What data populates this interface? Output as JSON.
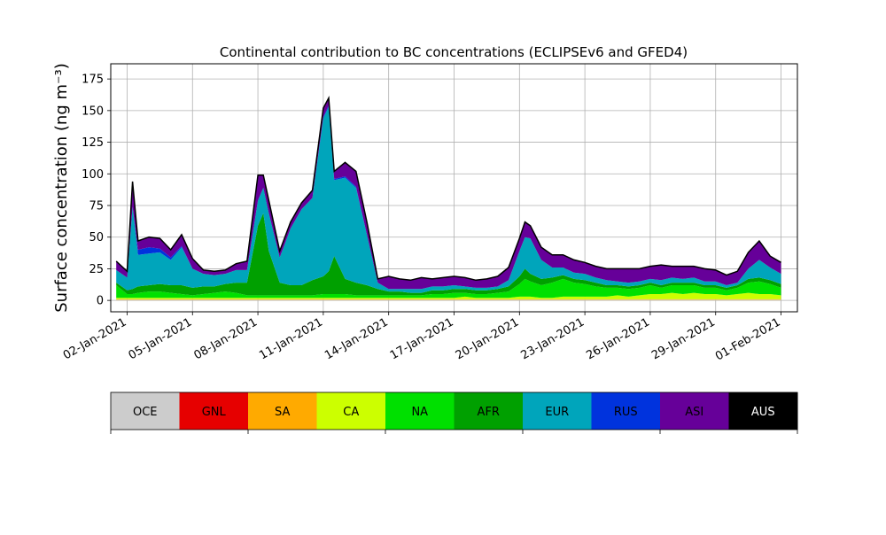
{
  "chart_data": {
    "type": "area",
    "stacked": true,
    "title": "Continental contribution to BC concentrations (ECLIPSEv6 and GFED4)",
    "ylabel": "Surface concentration (ng m⁻³)",
    "ylim": [
      -9,
      187
    ],
    "y_ticks": [
      0,
      25,
      50,
      75,
      100,
      125,
      150,
      175
    ],
    "y_tick_labels": [
      "0",
      "25",
      "50",
      "75",
      "100",
      "125",
      "150",
      "175"
    ],
    "xlim": [
      "2021-01-01T06:00",
      "2021-02-01T18:00"
    ],
    "x_ticks": [
      "2021-01-02",
      "2021-01-05",
      "2021-01-08",
      "2021-01-11",
      "2021-01-14",
      "2021-01-17",
      "2021-01-20",
      "2021-01-23",
      "2021-01-26",
      "2021-01-29",
      "2021-02-01"
    ],
    "x_tick_labels": [
      "02-Jan-2021",
      "05-Jan-2021",
      "08-Jan-2021",
      "11-Jan-2021",
      "14-Jan-2021",
      "17-Jan-2021",
      "20-Jan-2021",
      "23-Jan-2021",
      "26-Jan-2021",
      "29-Jan-2021",
      "01-Feb-2021"
    ],
    "grid": true,
    "x": [
      "2021-01-01T12:00",
      "2021-01-02T00:00",
      "2021-01-02T06:00",
      "2021-01-02T12:00",
      "2021-01-03T00:00",
      "2021-01-03T12:00",
      "2021-01-04T00:00",
      "2021-01-04T12:00",
      "2021-01-05T00:00",
      "2021-01-05T12:00",
      "2021-01-06T00:00",
      "2021-01-06T12:00",
      "2021-01-07T00:00",
      "2021-01-07T12:00",
      "2021-01-08T00:00",
      "2021-01-08T06:00",
      "2021-01-08T12:00",
      "2021-01-09T00:00",
      "2021-01-09T12:00",
      "2021-01-10T00:00",
      "2021-01-10T12:00",
      "2021-01-11T00:00",
      "2021-01-11T06:00",
      "2021-01-11T12:00",
      "2021-01-12T00:00",
      "2021-01-12T12:00",
      "2021-01-13T00:00",
      "2021-01-13T12:00",
      "2021-01-14T00:00",
      "2021-01-14T12:00",
      "2021-01-15T00:00",
      "2021-01-15T12:00",
      "2021-01-16T00:00",
      "2021-01-16T12:00",
      "2021-01-17T00:00",
      "2021-01-17T12:00",
      "2021-01-18T00:00",
      "2021-01-18T12:00",
      "2021-01-19T00:00",
      "2021-01-19T12:00",
      "2021-01-20T00:00",
      "2021-01-20T06:00",
      "2021-01-20T12:00",
      "2021-01-21T00:00",
      "2021-01-21T12:00",
      "2021-01-22T00:00",
      "2021-01-22T12:00",
      "2021-01-23T00:00",
      "2021-01-23T12:00",
      "2021-01-24T00:00",
      "2021-01-24T12:00",
      "2021-01-25T00:00",
      "2021-01-25T12:00",
      "2021-01-26T00:00",
      "2021-01-26T12:00",
      "2021-01-27T00:00",
      "2021-01-27T12:00",
      "2021-01-28T00:00",
      "2021-01-28T12:00",
      "2021-01-29T00:00",
      "2021-01-29T12:00",
      "2021-01-30T00:00",
      "2021-01-30T12:00",
      "2021-01-31T00:00",
      "2021-01-31T12:00",
      "2021-02-01T00:00"
    ],
    "series": [
      {
        "name": "OCE",
        "color": "#cccccc",
        "values": [
          0.5,
          0.5,
          0.5,
          0.5,
          0.5,
          0.5,
          0.5,
          0.5,
          0.5,
          0.5,
          0.5,
          0.5,
          0.5,
          0.5,
          0.5,
          0.5,
          0.5,
          0.5,
          0.5,
          0.5,
          0.5,
          0.5,
          0.5,
          0.5,
          0.5,
          0.5,
          0.5,
          0.5,
          0.5,
          0.5,
          0.5,
          0.5,
          0.5,
          0.5,
          0.5,
          0.5,
          0.5,
          0.5,
          0.5,
          0.5,
          0.5,
          0.5,
          0.5,
          0.5,
          0.5,
          0.5,
          0.5,
          0.5,
          0.5,
          0.5,
          0.5,
          0.5,
          0.5,
          0.5,
          0.5,
          0.5,
          0.5,
          0.5,
          0.5,
          0.5,
          0.5,
          0.5,
          0.5,
          0.5,
          0.5,
          0.5
        ]
      },
      {
        "name": "GNL",
        "color": "#e60000",
        "values": [
          0,
          0,
          0,
          0,
          0,
          0,
          0,
          0,
          0,
          0,
          0,
          0,
          0,
          0,
          0,
          0,
          0,
          0,
          0,
          0,
          0,
          0,
          0,
          0,
          0,
          0,
          0,
          0,
          0,
          0,
          0,
          0,
          0,
          0,
          0,
          0,
          0,
          0,
          0,
          0,
          0,
          0,
          0,
          0,
          0,
          0,
          0,
          0,
          0,
          0,
          0,
          0,
          0,
          0,
          0,
          0,
          0,
          0,
          0,
          0,
          0,
          0,
          0,
          0,
          0,
          0
        ]
      },
      {
        "name": "SA",
        "color": "#ffaa00",
        "values": [
          0.5,
          0.5,
          0.5,
          0.5,
          0.5,
          0.5,
          0.5,
          0.5,
          0.5,
          0.5,
          0.5,
          0.5,
          0.5,
          0.5,
          0.5,
          0.5,
          0.5,
          0.5,
          0.5,
          0.5,
          0.5,
          0.5,
          0.5,
          0.5,
          0.5,
          0.5,
          0.5,
          0.5,
          0.5,
          0.5,
          0.5,
          0.5,
          0.5,
          0.5,
          0.5,
          0.5,
          0.5,
          0.5,
          0.5,
          0.5,
          0.5,
          0.5,
          0.5,
          0.5,
          0.5,
          0.5,
          0.5,
          0.5,
          0.5,
          0.5,
          0.5,
          0.5,
          0.5,
          0.5,
          0.5,
          0.5,
          0.5,
          0.5,
          0.5,
          0.5,
          0.5,
          0.5,
          0.5,
          0.5,
          0.5,
          0.5
        ]
      },
      {
        "name": "CA",
        "color": "#ccff00",
        "values": [
          1,
          1,
          1,
          1,
          1,
          1,
          1,
          1,
          1,
          1,
          1,
          1,
          1,
          1,
          1,
          1,
          1,
          1,
          1,
          1,
          1,
          1,
          1,
          1,
          1,
          1,
          1,
          1,
          1,
          1,
          1,
          1,
          1,
          1,
          1,
          2,
          1,
          1,
          1,
          1,
          2,
          2,
          2,
          1,
          1,
          2,
          2,
          2,
          2,
          2,
          3,
          2,
          3,
          4,
          4,
          5,
          4,
          5,
          4,
          4,
          3,
          4,
          5,
          4,
          4,
          3
        ]
      },
      {
        "name": "NA",
        "color": "#00e000",
        "values": [
          10,
          3,
          3,
          4,
          5,
          5,
          4,
          3,
          2,
          3,
          4,
          5,
          4,
          2,
          2,
          2,
          2,
          2,
          2,
          2,
          2,
          3,
          3,
          3,
          3,
          2,
          2,
          2,
          2,
          2,
          2,
          2,
          3,
          3,
          4,
          3,
          3,
          3,
          4,
          5,
          10,
          14,
          12,
          10,
          12,
          14,
          11,
          10,
          8,
          7,
          6,
          6,
          6,
          7,
          5,
          6,
          7,
          6,
          5,
          5,
          4,
          5,
          8,
          10,
          8,
          6
        ]
      },
      {
        "name": "AFR",
        "color": "#00a000",
        "values": [
          2,
          3,
          4,
          5,
          5,
          6,
          6,
          7,
          6,
          6,
          5,
          6,
          8,
          10,
          55,
          65,
          35,
          10,
          8,
          8,
          12,
          14,
          18,
          30,
          12,
          10,
          8,
          5,
          3,
          3,
          2,
          2,
          3,
          3,
          3,
          3,
          3,
          3,
          3,
          4,
          6,
          8,
          6,
          5,
          4,
          3,
          3,
          3,
          3,
          2,
          2,
          2,
          2,
          2,
          2,
          2,
          2,
          2,
          2,
          2,
          2,
          2,
          3,
          3,
          3,
          3
        ]
      },
      {
        "name": "EUR",
        "color": "#00a5bb",
        "values": [
          10,
          10,
          65,
          25,
          25,
          25,
          20,
          30,
          15,
          10,
          9,
          8,
          10,
          10,
          20,
          20,
          30,
          20,
          45,
          60,
          65,
          125,
          130,
          60,
          80,
          75,
          40,
          5,
          2,
          2,
          3,
          3,
          3,
          3,
          3,
          2,
          2,
          2,
          2,
          5,
          20,
          25,
          28,
          15,
          8,
          6,
          5,
          5,
          4,
          4,
          3,
          3,
          3,
          3,
          4,
          4,
          3,
          4,
          3,
          3,
          2,
          2,
          8,
          14,
          10,
          8
        ]
      },
      {
        "name": "RUS",
        "color": "#0033dd",
        "values": [
          0,
          0,
          0,
          4,
          5,
          3,
          2,
          1,
          0,
          0,
          0,
          0,
          0,
          0,
          0,
          0,
          0,
          0,
          0,
          0,
          0,
          1,
          1,
          1,
          1,
          1,
          0,
          0,
          0,
          0,
          0,
          0,
          0,
          0,
          0,
          0,
          0,
          0,
          0,
          0,
          0,
          0,
          0,
          0,
          0,
          0,
          0,
          0,
          0,
          0,
          0,
          0,
          0,
          0,
          0,
          0,
          0,
          0,
          0,
          0,
          0,
          0,
          0,
          0,
          0,
          0
        ]
      },
      {
        "name": "ASI",
        "color": "#660099",
        "values": [
          7,
          5,
          20,
          7,
          8,
          8,
          6,
          9,
          8,
          3,
          3,
          3,
          5,
          7,
          20,
          10,
          10,
          5,
          5,
          5,
          6,
          7,
          6,
          6,
          11,
          12,
          10,
          3,
          10,
          8,
          7,
          9,
          6,
          7,
          7,
          7,
          6,
          7,
          8,
          10,
          10,
          12,
          10,
          10,
          10,
          10,
          10,
          9,
          9,
          9,
          10,
          11,
          10,
          10,
          12,
          9,
          10,
          9,
          10,
          9,
          8,
          9,
          13,
          15,
          9,
          9
        ]
      },
      {
        "name": "AUS",
        "color": "#000000",
        "values": [
          0,
          0,
          0,
          0,
          0,
          0,
          0,
          0,
          0,
          0,
          0,
          0,
          0,
          0,
          0,
          0,
          0,
          0,
          0,
          0,
          0,
          0,
          0,
          0,
          0,
          0,
          0,
          0,
          0,
          0,
          0,
          0,
          0,
          0,
          0,
          0,
          0,
          0,
          0,
          0,
          0,
          0,
          0,
          0,
          0,
          0,
          0,
          0,
          0,
          0,
          0,
          0,
          0,
          0,
          0,
          0,
          0,
          0,
          0,
          0,
          0,
          0,
          0,
          0,
          0,
          0
        ]
      }
    ]
  },
  "colorbar": {
    "labels": [
      "OCE",
      "GNL",
      "SA",
      "CA",
      "NA",
      "AFR",
      "EUR",
      "RUS",
      "ASI",
      "AUS"
    ],
    "colors": [
      "#cccccc",
      "#e60000",
      "#ffaa00",
      "#ccff00",
      "#00e000",
      "#00a000",
      "#00a5bb",
      "#0033dd",
      "#660099",
      "#000000"
    ]
  }
}
